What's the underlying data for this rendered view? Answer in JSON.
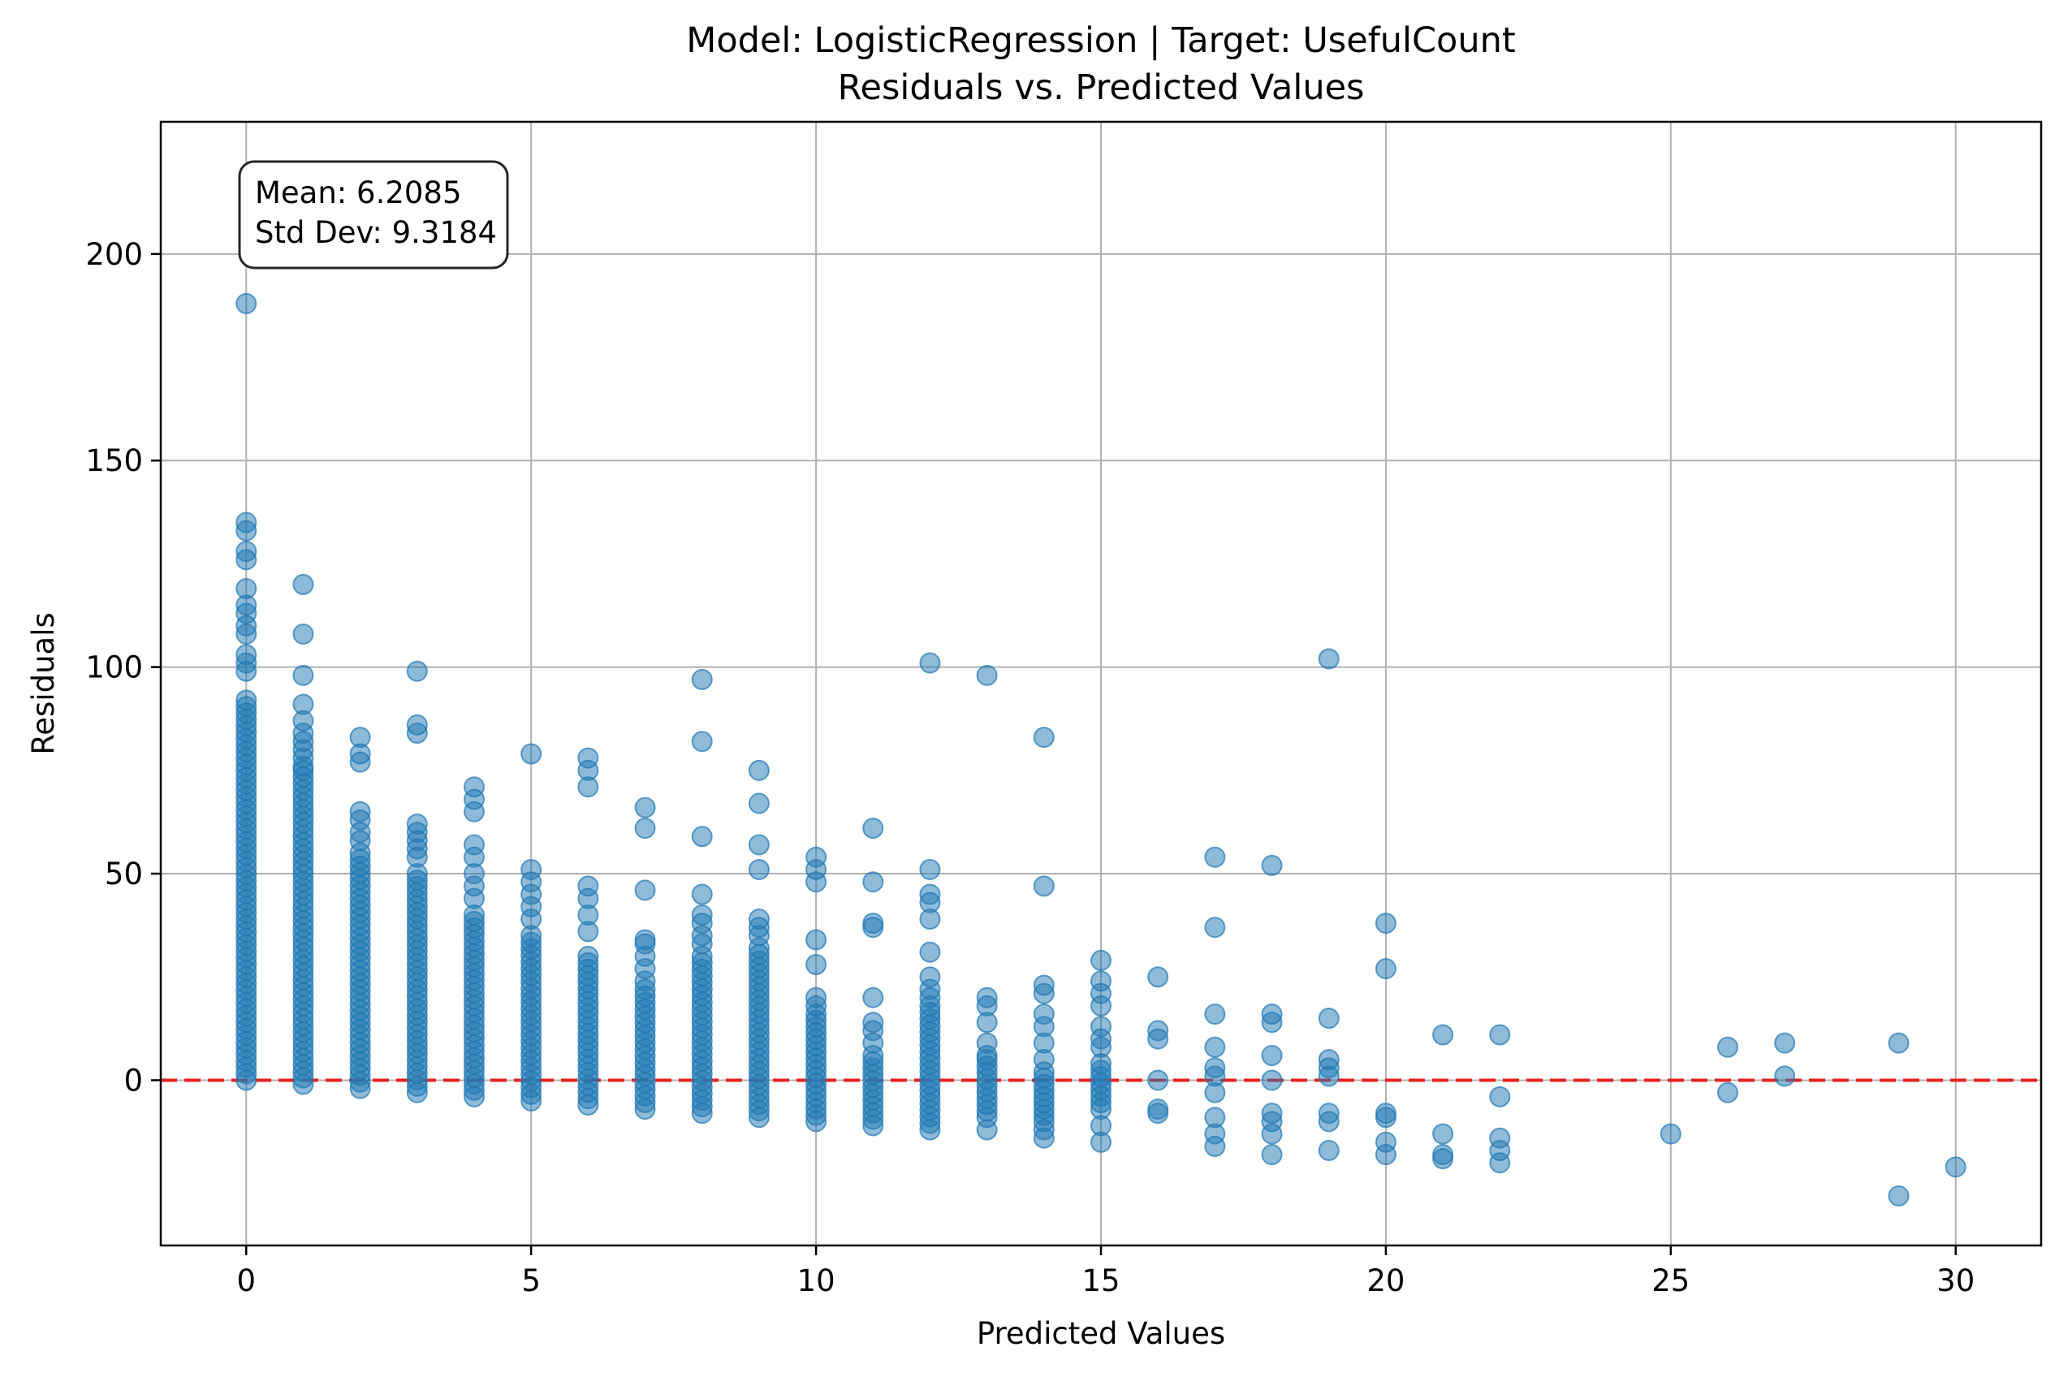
{
  "chart_data": {
    "type": "scatter",
    "title_line1": "Model: LogisticRegression | Target: UsefulCount",
    "title_line2": "Residuals vs. Predicted Values",
    "xlabel": "Predicted Values",
    "ylabel": "Residuals",
    "xlim": [
      -1.5,
      31.5
    ],
    "ylim": [
      -40,
      232
    ],
    "xticks": [
      0,
      5,
      10,
      15,
      20,
      25,
      30
    ],
    "yticks": [
      0,
      50,
      100,
      150,
      200
    ],
    "grid": true,
    "reference_line": {
      "y": 0,
      "color": "#e8211f",
      "style": "dashed"
    },
    "point_color": "#1f77b4",
    "point_alpha": 0.5,
    "stats_box": {
      "mean_text": "Mean: 6.2085",
      "std_text": "Std Dev: 9.3184"
    },
    "columns": [
      {
        "x": 0,
        "dense": [
          0,
          92
        ],
        "points": [
          188,
          135,
          133,
          128,
          126,
          119,
          115,
          113,
          110,
          108,
          103,
          101,
          99
        ]
      },
      {
        "x": 1,
        "dense": [
          -1,
          75
        ],
        "points": [
          120,
          108,
          98,
          91,
          87,
          84,
          82,
          80,
          78,
          76
        ]
      },
      {
        "x": 2,
        "dense": [
          -2,
          55
        ],
        "points": [
          83,
          79,
          77,
          65,
          63,
          60,
          58
        ]
      },
      {
        "x": 3,
        "dense": [
          -3,
          50
        ],
        "points": [
          99,
          86,
          84,
          62,
          60,
          58,
          56,
          54
        ]
      },
      {
        "x": 4,
        "dense": [
          -4,
          40
        ],
        "points": [
          71,
          68,
          65,
          57,
          54,
          50,
          47,
          44
        ]
      },
      {
        "x": 5,
        "dense": [
          -5,
          35
        ],
        "points": [
          79,
          51,
          48,
          45,
          42,
          39
        ]
      },
      {
        "x": 6,
        "dense": [
          -6,
          30
        ],
        "points": [
          78,
          75,
          71,
          47,
          44,
          40,
          36
        ]
      },
      {
        "x": 7,
        "dense": [
          -7,
          22
        ],
        "points": [
          66,
          61,
          46,
          34,
          33,
          30,
          27,
          24
        ]
      },
      {
        "x": 8,
        "dense": [
          -8,
          30
        ],
        "points": [
          97,
          82,
          59,
          45,
          40,
          38,
          35,
          33
        ]
      },
      {
        "x": 9,
        "dense": [
          -9,
          32
        ],
        "points": [
          75,
          67,
          57,
          51,
          39,
          37,
          35
        ]
      },
      {
        "x": 10,
        "dense": [
          -10,
          16
        ],
        "points": [
          54,
          51,
          48,
          34,
          28,
          20,
          18
        ]
      },
      {
        "x": 11,
        "dense": [
          -11,
          6
        ],
        "points": [
          61,
          48,
          38,
          37,
          20,
          14,
          12,
          9
        ]
      },
      {
        "x": 12,
        "dense": [
          -12,
          18
        ],
        "points": [
          101,
          51,
          45,
          43,
          39,
          31,
          25,
          22,
          20
        ]
      },
      {
        "x": 13,
        "dense": [
          -9,
          5
        ],
        "points": [
          98,
          20,
          18,
          14,
          9,
          6,
          -12
        ]
      },
      {
        "x": 14,
        "dense": [
          -10,
          2
        ],
        "points": [
          83,
          47,
          23,
          21,
          16,
          13,
          9,
          5,
          -12,
          -14
        ]
      },
      {
        "x": 15,
        "dense": [
          -7,
          4
        ],
        "points": [
          29,
          24,
          21,
          18,
          13,
          10,
          8,
          -11,
          -15
        ]
      },
      {
        "x": 16,
        "points": [
          25,
          12,
          10,
          0,
          -7,
          -8
        ]
      },
      {
        "x": 17,
        "points": [
          54,
          37,
          16,
          8,
          3,
          1,
          -3,
          -9,
          -13,
          -16
        ]
      },
      {
        "x": 18,
        "points": [
          52,
          16,
          14,
          6,
          0,
          -8,
          -10,
          -13,
          -18
        ]
      },
      {
        "x": 19,
        "points": [
          102,
          15,
          5,
          3,
          1,
          -8,
          -10,
          -17
        ]
      },
      {
        "x": 20,
        "points": [
          38,
          27,
          -8,
          -9,
          -15,
          -18
        ]
      },
      {
        "x": 21,
        "points": [
          11,
          -13,
          -18,
          -19
        ]
      },
      {
        "x": 22,
        "points": [
          11,
          -4,
          -14,
          -17,
          -20
        ]
      },
      {
        "x": 25,
        "points": [
          -13
        ]
      },
      {
        "x": 26,
        "points": [
          8,
          -3
        ]
      },
      {
        "x": 27,
        "points": [
          9,
          1
        ]
      },
      {
        "x": 29,
        "points": [
          9,
          -28
        ]
      },
      {
        "x": 30,
        "points": [
          -21
        ]
      }
    ]
  }
}
